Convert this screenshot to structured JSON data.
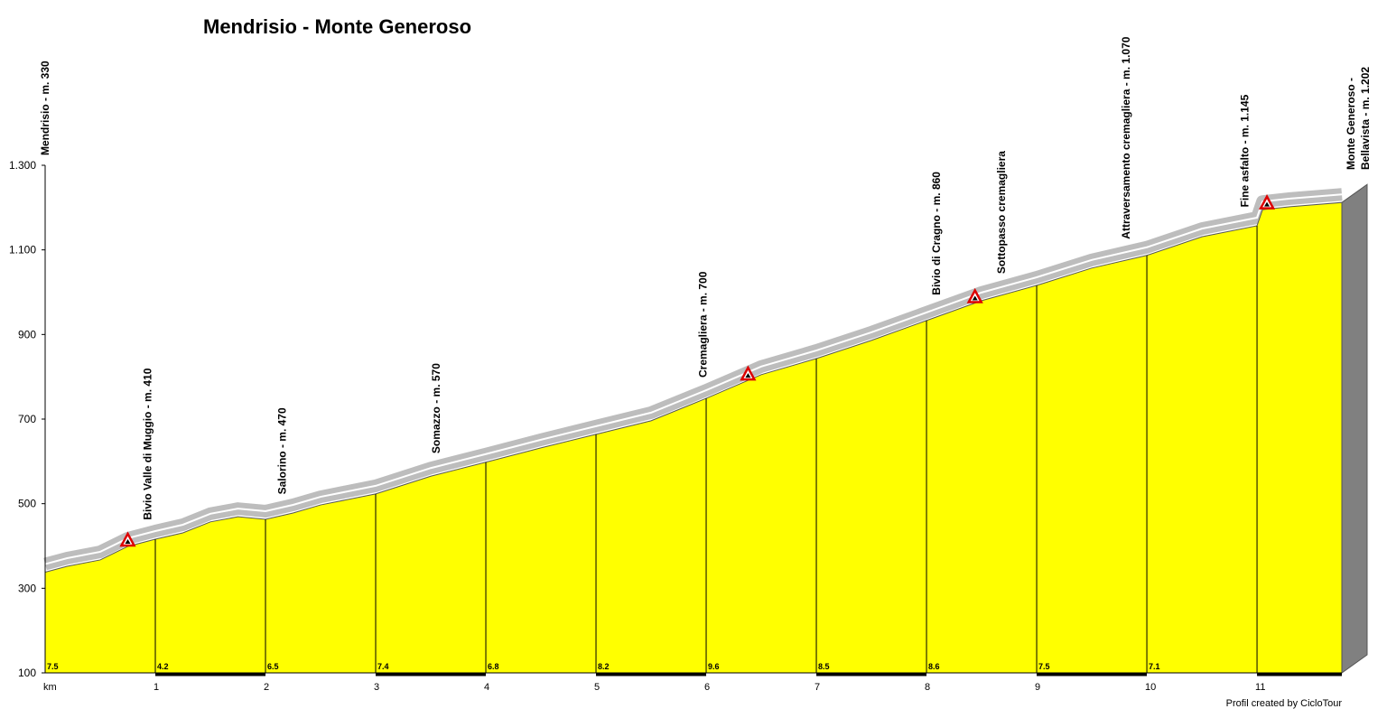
{
  "chart_data": {
    "type": "area",
    "title": "Mendrisio - Monte Generoso",
    "x": [
      0,
      0.2,
      0.5,
      0.75,
      1,
      1.25,
      1.5,
      1.75,
      2,
      2.25,
      2.5,
      3,
      3.5,
      4,
      4.5,
      5,
      5.5,
      6,
      6.5,
      7,
      7.5,
      8,
      8.5,
      9,
      9.5,
      10,
      10.5,
      11,
      11.05,
      11.3,
      11.77
    ],
    "values": [
      338,
      352,
      367,
      399,
      416,
      431,
      457,
      469,
      463,
      478,
      497,
      523,
      565,
      598,
      632,
      664,
      696,
      749,
      805,
      843,
      886,
      933,
      980,
      1016,
      1057,
      1087,
      1131,
      1157,
      1195,
      1202,
      1212
    ],
    "color": "#ffff00",
    "xlim": [
      0,
      11.77
    ],
    "xticks": [
      {
        "value": 0,
        "label": "km"
      },
      1,
      2,
      3,
      4,
      5,
      6,
      7,
      8,
      9,
      10,
      11
    ],
    "ylim": [
      100,
      1300
    ],
    "yticks": [
      {
        "value": 100,
        "label": "100"
      },
      {
        "value": 300,
        "label": "300"
      },
      {
        "value": 500,
        "label": "500"
      },
      {
        "value": 700,
        "label": "700"
      },
      {
        "value": 900,
        "label": "900"
      },
      {
        "value": 1100,
        "label": "1.100"
      },
      {
        "value": 1300,
        "label": "1.300"
      }
    ],
    "gradients": {
      "km": [
        0,
        1,
        2,
        3,
        4,
        5,
        6,
        7,
        8,
        9,
        10
      ],
      "values": [
        7.5,
        4.2,
        6.5,
        7.4,
        6.8,
        8.2,
        9.6,
        8.5,
        8.6,
        7.5,
        7.1
      ]
    },
    "annotations": [
      {
        "km": 0,
        "label": "Mendrisio - m. 330"
      },
      {
        "km": 0.98,
        "label": "Bivio Valle di Muggio - m. 410"
      },
      {
        "km": 2.2,
        "label": "Salorino - m. 470"
      },
      {
        "km": 3.6,
        "label": "Somazzo - m. 570"
      },
      {
        "km": 6.02,
        "label": "Cremagliera - m. 700"
      },
      {
        "km": 8.14,
        "label": "Bivio di Cragno - m. 860"
      },
      {
        "km": 8.73,
        "label": "Sottopasso cremagliera"
      },
      {
        "km": 9.86,
        "label": "Attraversamento cremagliera - m. 1.070"
      },
      {
        "km": 10.94,
        "label": "Fine asfalto - m. 1.145"
      },
      {
        "km": 11.77,
        "label": [
          "Monte Generoso -",
          "Bellavista - m. 1.202"
        ]
      }
    ],
    "warnings_km": [
      0.75,
      6.38,
      8.44,
      11.09
    ],
    "footer": "Profil created by CicloTour"
  }
}
